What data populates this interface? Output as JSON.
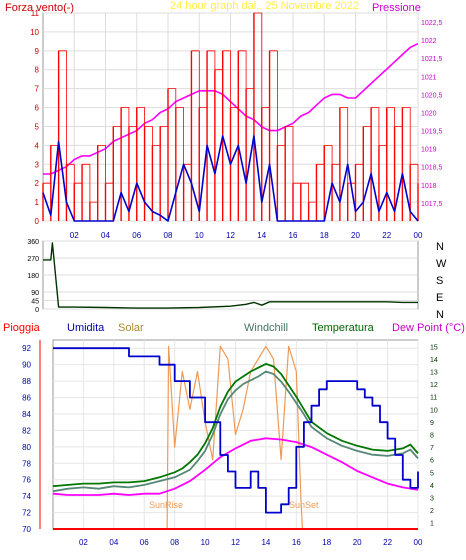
{
  "chart_data": [
    {
      "type": "line",
      "title": "24 hour graph dal.. 25 Novembre 2022",
      "ylabel_left": "Forza vento(-)",
      "ylabel_right": "Pressione",
      "x_ticks": [
        "02",
        "04",
        "06",
        "08",
        "10",
        "12",
        "14",
        "16",
        "18",
        "20",
        "22",
        "00"
      ],
      "ylim_left": [
        0,
        11
      ],
      "yticks_left": [
        "0",
        "1",
        "2",
        "3",
        "4",
        "5",
        "6",
        "7",
        "8",
        "9",
        "10",
        "11"
      ],
      "ylim_right": [
        1017.0,
        1022.75
      ],
      "yticks_right": [
        "1017,5",
        "1018",
        "1018,5",
        "1019",
        "1019,5",
        "1020",
        "1020,5",
        "1021",
        "1021,5",
        "1022",
        "1022,5"
      ],
      "x_range_hours": [
        0,
        24
      ],
      "series": [
        {
          "name": "Pressione",
          "color": "#ff00ff",
          "axis": "right",
          "x": [
            0,
            0.5,
            1,
            1.5,
            2,
            2.5,
            3,
            3.5,
            4,
            4.5,
            5,
            5.5,
            6,
            6.5,
            7,
            7.5,
            8,
            8.5,
            9,
            9.5,
            10,
            10.5,
            11,
            11.5,
            12,
            12.5,
            13,
            13.5,
            14,
            14.5,
            15,
            15.5,
            16,
            16.5,
            17,
            17.5,
            18,
            18.5,
            19,
            19.5,
            20,
            20.5,
            21,
            21.5,
            22,
            22.5,
            23,
            23.5,
            24
          ],
          "values": [
            1018.3,
            1018.3,
            1018.4,
            1018.5,
            1018.7,
            1018.8,
            1018.8,
            1018.9,
            1019.0,
            1019.2,
            1019.3,
            1019.4,
            1019.5,
            1019.7,
            1019.8,
            1020.0,
            1020.1,
            1020.3,
            1020.4,
            1020.5,
            1020.6,
            1020.6,
            1020.6,
            1020.5,
            1020.3,
            1020.1,
            1019.9,
            1019.8,
            1019.6,
            1019.5,
            1019.5,
            1019.6,
            1019.7,
            1019.9,
            1020.0,
            1020.2,
            1020.4,
            1020.5,
            1020.5,
            1020.4,
            1020.4,
            1020.6,
            1020.8,
            1021.0,
            1021.2,
            1021.4,
            1021.6,
            1021.8,
            1021.9
          ]
        },
        {
          "name": "Forza vento (raffica)",
          "color": "#ff0000",
          "axis": "left",
          "x": [
            0,
            0.5,
            1,
            1.5,
            2,
            2.5,
            3,
            3.5,
            4,
            4.5,
            5,
            5.5,
            6,
            6.5,
            7,
            7.5,
            8,
            8.5,
            9,
            9.5,
            10,
            10.5,
            11,
            11.5,
            12,
            12.5,
            13,
            13.5,
            14,
            14.5,
            15,
            15.5,
            16,
            16.5,
            17,
            17.5,
            18,
            18.5,
            19,
            19.5,
            20,
            20.5,
            21,
            21.5,
            22,
            22.5,
            23,
            23.5,
            24
          ],
          "values": [
            2,
            4,
            9,
            3,
            2,
            3,
            1,
            4,
            2,
            5,
            6,
            5,
            6,
            5,
            4,
            5,
            7,
            6,
            3,
            9,
            6,
            9,
            8,
            9,
            6,
            9,
            7,
            11,
            6,
            9,
            4,
            5,
            2,
            2,
            1,
            3,
            4,
            3,
            6,
            2,
            3,
            5,
            6,
            4,
            6,
            5,
            6,
            3,
            2
          ]
        },
        {
          "name": "Forza vento (media)",
          "color": "#0000cc",
          "axis": "left",
          "x": [
            0,
            0.5,
            1,
            1.5,
            2,
            2.5,
            3,
            3.5,
            4,
            4.5,
            5,
            5.5,
            6,
            6.5,
            7,
            7.5,
            8,
            8.5,
            9,
            9.5,
            10,
            10.5,
            11,
            11.5,
            12,
            12.5,
            13,
            13.5,
            14,
            14.5,
            15,
            15.5,
            16,
            16.5,
            17,
            17.5,
            18,
            18.5,
            19,
            19.5,
            20,
            20.5,
            21,
            21.5,
            22,
            22.5,
            23,
            23.5,
            24
          ],
          "values": [
            1.5,
            0.3,
            4.2,
            1,
            0,
            0,
            0,
            0,
            0,
            0,
            1.5,
            0.5,
            2,
            1,
            0.5,
            0.3,
            0,
            1.5,
            3,
            2,
            0.5,
            4,
            2.5,
            4.5,
            3,
            4,
            2,
            4.5,
            1,
            3,
            0,
            0,
            0,
            0,
            0,
            0,
            0,
            2,
            1,
            3,
            0.5,
            1,
            2.5,
            0.5,
            1.5,
            0.5,
            2.5,
            0.5,
            0
          ]
        }
      ]
    },
    {
      "type": "line",
      "title": "",
      "ylim": [
        0,
        360
      ],
      "yticks": [
        "0",
        "45",
        "90",
        "180",
        "270",
        "360"
      ],
      "direction_labels": [
        "N",
        "W",
        "S",
        "E",
        "N"
      ],
      "series": [
        {
          "name": "Direzione vento",
          "color": "#003300",
          "x": [
            0,
            0.3,
            0.5,
            0.6,
            1,
            2,
            4,
            6,
            8,
            10,
            12,
            13,
            13.5,
            14,
            14.5,
            15,
            16,
            18,
            20,
            22,
            23,
            24
          ],
          "values": [
            260,
            260,
            260,
            350,
            10,
            10,
            8,
            5,
            5,
            8,
            15,
            25,
            35,
            20,
            38,
            38,
            38,
            38,
            38,
            38,
            35,
            35
          ]
        }
      ]
    },
    {
      "type": "line",
      "title": "",
      "legend": [
        "Pioggia",
        "Umidita",
        "Solar",
        "Windchill",
        "Temperatura",
        "Dew Point (°C)"
      ],
      "ylim_left": [
        70,
        93
      ],
      "yticks_left": [
        "70",
        "72",
        "74",
        "76",
        "78",
        "80",
        "82",
        "84",
        "86",
        "88",
        "90",
        "92"
      ],
      "ylim_right": [
        0.5,
        15.5
      ],
      "yticks_right": [
        "1",
        "2",
        "3",
        "4",
        "5",
        "6",
        "7",
        "8",
        "9",
        "10",
        "11",
        "12",
        "13",
        "14",
        "15"
      ],
      "annotations": [
        "SunRise",
        "SunSet"
      ],
      "series": [
        {
          "name": "Umidita",
          "color": "#0000cc",
          "axis": "left",
          "x": [
            0,
            3,
            4,
            5,
            6,
            7,
            8,
            8.5,
            9,
            10,
            11,
            11.5,
            12,
            12.5,
            13,
            13.5,
            14,
            14.5,
            15,
            15.5,
            16,
            16.5,
            17,
            17.5,
            18,
            19,
            20,
            20.5,
            21,
            21.5,
            22,
            22.5,
            23,
            23.5,
            24
          ],
          "values": [
            92,
            92,
            92,
            91,
            91,
            90,
            88,
            88,
            86,
            83,
            79,
            77,
            75,
            75,
            77,
            75,
            72,
            72,
            73,
            75,
            80,
            83,
            85,
            87,
            88,
            88,
            87,
            86,
            85,
            83,
            81,
            79,
            76,
            75,
            77
          ]
        },
        {
          "name": "Temperatura",
          "color": "#007700",
          "axis": "right",
          "x": [
            0,
            1,
            2,
            3,
            4,
            5,
            6,
            7,
            8,
            8.5,
            9,
            9.5,
            10,
            10.5,
            11,
            11.5,
            12,
            12.5,
            13,
            13.5,
            14,
            14.5,
            15,
            15.5,
            16,
            16.5,
            17,
            18,
            19,
            20,
            21,
            22,
            23,
            23.5,
            24
          ],
          "values": [
            3.9,
            4.0,
            4.1,
            4.1,
            4.2,
            4.2,
            4.3,
            4.6,
            5.0,
            5.3,
            5.8,
            6.4,
            7.3,
            8.5,
            10.2,
            11.4,
            12.2,
            12.6,
            13.0,
            13.3,
            13.6,
            13.4,
            12.8,
            11.9,
            11.0,
            10.0,
            9.0,
            8.1,
            7.5,
            7.1,
            6.8,
            6.7,
            6.9,
            7.2,
            6.5
          ]
        },
        {
          "name": "Windchill",
          "color": "#558877",
          "axis": "right",
          "x": [
            0,
            1,
            2,
            3,
            4,
            5,
            6,
            7,
            8,
            8.5,
            9,
            9.5,
            10,
            10.5,
            11,
            11.5,
            12,
            12.5,
            13,
            13.5,
            14,
            14.5,
            15,
            15.5,
            16,
            16.5,
            17,
            18,
            19,
            20,
            21,
            22,
            23,
            23.5,
            24
          ],
          "values": [
            3.5,
            3.7,
            3.8,
            3.7,
            3.9,
            3.8,
            4.0,
            4.3,
            4.6,
            4.9,
            5.2,
            5.9,
            6.7,
            8.0,
            9.6,
            10.8,
            11.5,
            12.0,
            12.3,
            12.6,
            13.0,
            12.8,
            12.2,
            11.4,
            10.5,
            9.6,
            8.6,
            7.7,
            7.1,
            6.7,
            6.4,
            6.3,
            6.5,
            6.8,
            6.1
          ]
        },
        {
          "name": "Dew Point (°C)",
          "color": "#ff00ff",
          "axis": "right",
          "x": [
            0,
            1,
            2,
            3,
            4,
            5,
            6,
            7,
            8,
            9,
            10,
            11,
            12,
            13,
            14,
            15,
            16,
            17,
            18,
            19,
            20,
            21,
            22,
            23,
            24
          ],
          "values": [
            3.3,
            3.2,
            3.2,
            3.2,
            3.3,
            3.2,
            3.3,
            3.3,
            3.7,
            4.3,
            5.2,
            6.2,
            6.9,
            7.5,
            7.7,
            7.6,
            7.4,
            7.0,
            6.4,
            5.8,
            5.1,
            4.6,
            4.1,
            3.8,
            3.6
          ]
        },
        {
          "name": "Solar",
          "color": "#ee9955",
          "axis": "right",
          "x": [
            0,
            7.5,
            7.6,
            8,
            8.5,
            9,
            9.5,
            10,
            10.5,
            11,
            11.5,
            12,
            12.5,
            13,
            13.5,
            14,
            14.5,
            15,
            15.5,
            16,
            16.3,
            16.4,
            24
          ],
          "values": [
            0.5,
            0.5,
            15,
            7,
            13,
            10,
            13,
            9,
            6,
            15,
            14,
            8,
            10,
            13,
            14,
            15,
            14,
            6,
            15,
            13,
            3,
            0.5,
            0.5
          ]
        },
        {
          "name": "Pioggia",
          "color": "#ff0000",
          "axis": "right",
          "x": [
            0,
            24
          ],
          "values": [
            0.5,
            0.5
          ]
        }
      ]
    }
  ]
}
